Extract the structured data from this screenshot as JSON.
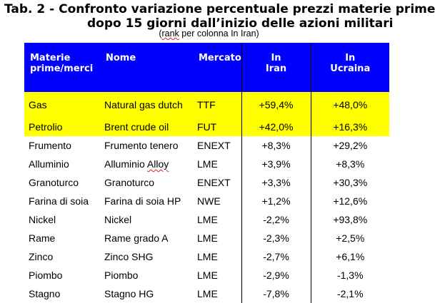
{
  "title": {
    "line1": "Tab. 2 - Confronto variazione percentuale prezzi materie prime",
    "line2": "dopo 15 giorni dall’inizio delle azioni militari"
  },
  "subtitle": {
    "prefix": "(",
    "underlined": "rank",
    "rest": " per colonna In Iran)"
  },
  "table": {
    "headers": [
      "Materie prime/merci",
      "Nome",
      "Mercato",
      "In Iran",
      "In Ucraina"
    ],
    "rows": [
      {
        "materia": "Gas",
        "nome": "Natural gas dutch",
        "mercato": "TTF",
        "iran": "+59,4%",
        "ucraina": "+48,0%",
        "highlight": true
      },
      {
        "materia": "Petrolio",
        "nome": "Brent crude oil",
        "mercato": "FUT",
        "iran": "+42,0%",
        "ucraina": "+16,3%",
        "highlight": true
      },
      {
        "materia": "Frumento",
        "nome": "Frumento tenero",
        "mercato": "ENEXT",
        "iran": "+8,3%",
        "ucraina": "+29,2%",
        "highlight": false
      },
      {
        "materia": "Alluminio",
        "nome": "Alluminio Alloy",
        "mercato": "LME",
        "iran": "+3,9%",
        "ucraina": "+8,3%",
        "highlight": false
      },
      {
        "materia": "Granoturco",
        "nome": "Granoturco",
        "mercato": "ENEXT",
        "iran": "+3,3%",
        "ucraina": "+30,3%",
        "highlight": false
      },
      {
        "materia": "Farina di soia",
        "nome": "Farina di soia HP",
        "mercato": "NWE",
        "iran": "+1,2%",
        "ucraina": "+12,6%",
        "highlight": false
      },
      {
        "materia": "Nickel",
        "nome": "Nickel",
        "mercato": "LME",
        "iran": "-2,2%",
        "ucraina": "+93,8%",
        "highlight": false
      },
      {
        "materia": "Rame",
        "nome": "Rame grado A",
        "mercato": "LME",
        "iran": "-2,3%",
        "ucraina": "+2,5%",
        "highlight": false
      },
      {
        "materia": "Zinco",
        "nome": "Zinco SHG",
        "mercato": "LME",
        "iran": "-2,7%",
        "ucraina": "+6,1%",
        "highlight": false
      },
      {
        "materia": "Piombo",
        "nome": "Piombo",
        "mercato": "LME",
        "iran": "-2,9%",
        "ucraina": "-1,3%",
        "highlight": false
      },
      {
        "materia": "Stagno",
        "nome": "Stagno HG",
        "mercato": "LME",
        "iran": "-7,8%",
        "ucraina": "-2,1%",
        "highlight": false
      }
    ]
  },
  "colors": {
    "header_bg": "#0000ff",
    "header_text": "#ffffff",
    "highlight": "#ffff00",
    "spell_underline": "#dd2222"
  }
}
